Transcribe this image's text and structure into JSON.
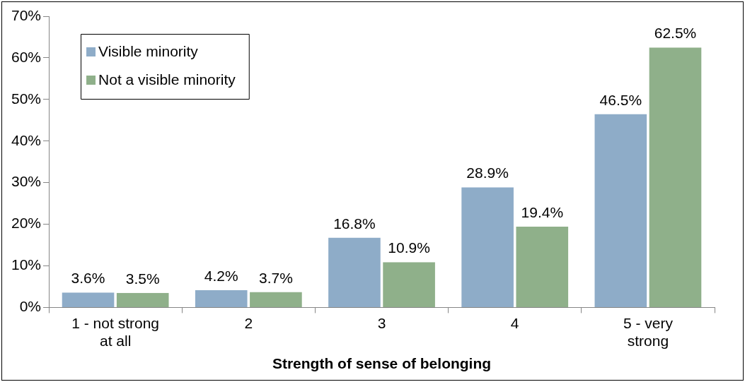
{
  "chart_data": {
    "type": "bar",
    "xlabel": "Strength of sense of belonging",
    "categories": [
      "1 - not strong at all",
      "2",
      "3",
      "4",
      "5 - very strong"
    ],
    "series": [
      {
        "name": "Visible minority",
        "color": "#8eacc8",
        "values": [
          3.6,
          4.2,
          16.8,
          28.9,
          46.5
        ],
        "value_labels": [
          "3.6%",
          "4.2%",
          "16.8%",
          "28.9%",
          "46.5%"
        ]
      },
      {
        "name": "Not a visible minority",
        "color": "#8fb08a",
        "values": [
          3.5,
          3.7,
          10.9,
          19.4,
          62.5
        ],
        "value_labels": [
          "3.5%",
          "3.7%",
          "10.9%",
          "19.4%",
          "62.5%"
        ]
      }
    ],
    "ylim": [
      0,
      70
    ],
    "yticks": [
      {
        "value": 0,
        "label": "0%"
      },
      {
        "value": 10,
        "label": "10%"
      },
      {
        "value": 20,
        "label": "20%"
      },
      {
        "value": 30,
        "label": "30%"
      },
      {
        "value": 40,
        "label": "40%"
      },
      {
        "value": 50,
        "label": "50%"
      },
      {
        "value": 60,
        "label": "60%"
      },
      {
        "value": 70,
        "label": "70%"
      }
    ],
    "grid": false,
    "legend": "top left"
  }
}
